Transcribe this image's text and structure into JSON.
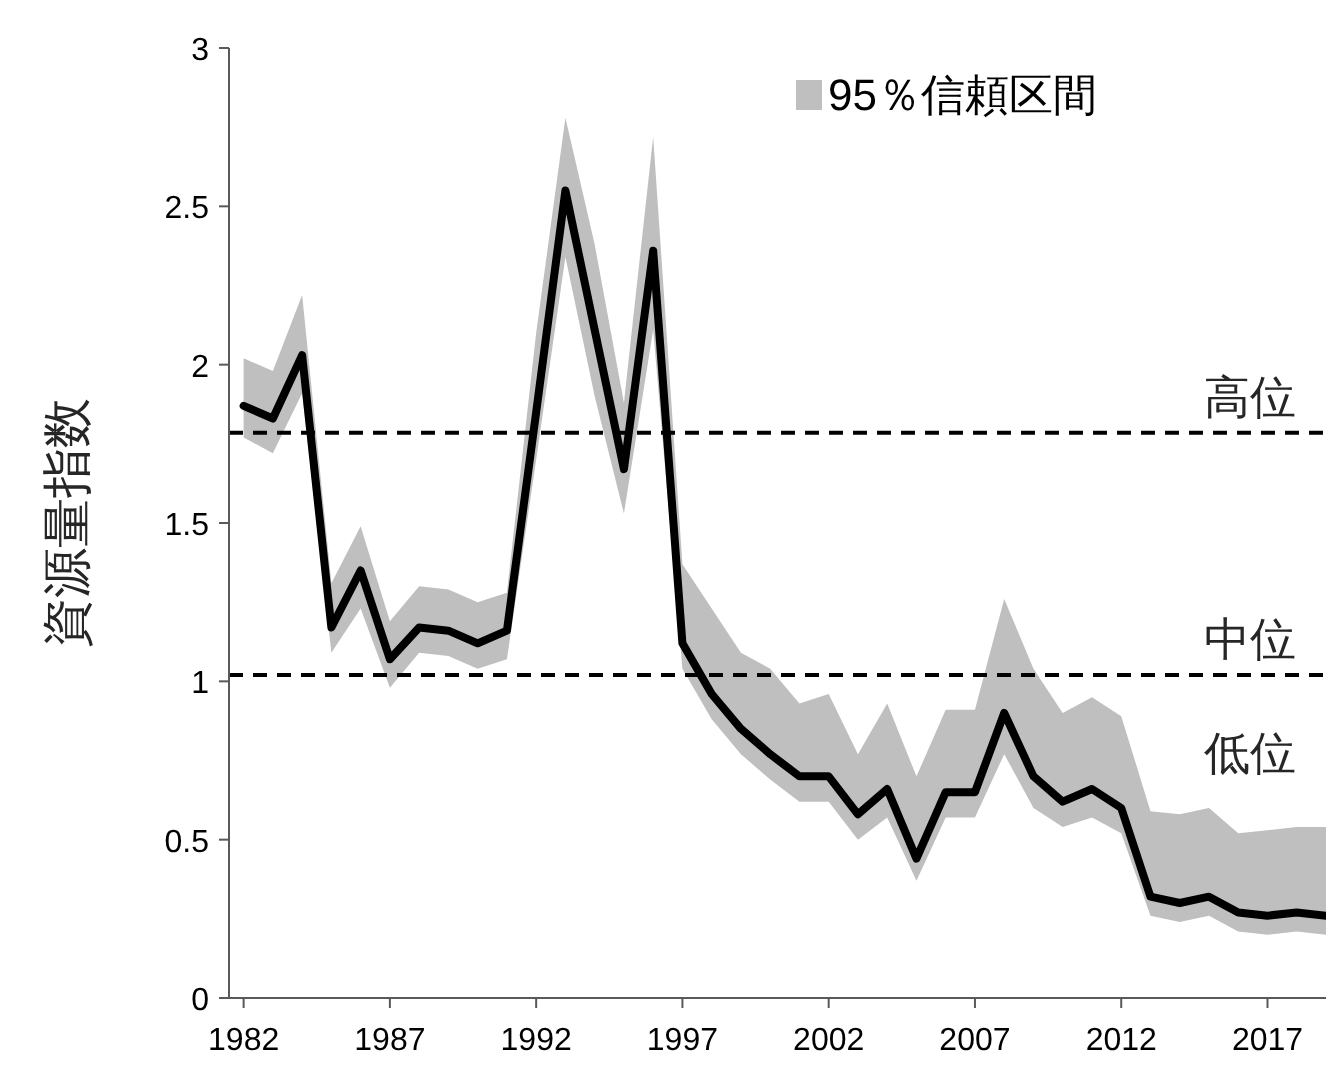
{
  "chart_data": {
    "type": "line",
    "ylabel": "資源量指数",
    "x": [
      1982,
      1983,
      1984,
      1985,
      1986,
      1987,
      1988,
      1989,
      1990,
      1991,
      1992,
      1993,
      1994,
      1995,
      1996,
      1997,
      1998,
      1999,
      2000,
      2001,
      2002,
      2003,
      2004,
      2005,
      2006,
      2007,
      2008,
      2009,
      2010,
      2011,
      2012,
      2013,
      2014,
      2015,
      2016,
      2017,
      2018,
      2019
    ],
    "series": [
      {
        "color": "#000000",
        "values": [
          1.87,
          1.83,
          2.03,
          1.17,
          1.35,
          1.07,
          1.17,
          1.16,
          1.12,
          1.16,
          1.85,
          2.55,
          2.11,
          1.67,
          2.36,
          1.12,
          0.96,
          0.85,
          0.77,
          0.7,
          0.7,
          0.58,
          0.66,
          0.44,
          0.65,
          0.65,
          0.9,
          0.7,
          0.62,
          0.66,
          0.6,
          0.32,
          0.3,
          0.32,
          0.27,
          0.26,
          0.27,
          0.26
        ],
        "upper": [
          2.02,
          1.98,
          2.22,
          1.31,
          1.49,
          1.19,
          1.3,
          1.29,
          1.25,
          1.28,
          2.1,
          2.78,
          2.38,
          1.88,
          2.72,
          1.37,
          1.23,
          1.09,
          1.04,
          0.93,
          0.96,
          0.77,
          0.93,
          0.7,
          0.91,
          0.91,
          1.26,
          1.04,
          0.9,
          0.95,
          0.89,
          0.59,
          0.58,
          0.6,
          0.52,
          0.53,
          0.54,
          0.54
        ],
        "lower": [
          1.77,
          1.72,
          1.91,
          1.09,
          1.23,
          0.98,
          1.09,
          1.08,
          1.04,
          1.07,
          1.7,
          2.34,
          1.9,
          1.53,
          2.11,
          1.04,
          0.88,
          0.77,
          0.69,
          0.62,
          0.62,
          0.5,
          0.57,
          0.37,
          0.57,
          0.57,
          0.77,
          0.6,
          0.54,
          0.57,
          0.52,
          0.26,
          0.24,
          0.26,
          0.21,
          0.2,
          0.21,
          0.2
        ]
      }
    ],
    "xlim": [
      1981.5,
      2019
    ],
    "xticks": [
      1982,
      1987,
      1992,
      1997,
      2002,
      2007,
      2012,
      2017
    ],
    "ylim": [
      0,
      3
    ],
    "yticks": [
      0,
      0.5,
      1,
      1.5,
      2,
      2.5,
      3
    ],
    "ref_lines": [
      {
        "axis": "y",
        "value": 1.785,
        "label": "高位",
        "color": "#000000",
        "line_style": "dashed"
      },
      {
        "axis": "y",
        "value": 1.02,
        "label": "中位",
        "color": "#000000",
        "line_style": "dashed"
      }
    ],
    "annotations": [
      "95％信頼区間",
      "低位"
    ],
    "line_style": "solid",
    "marker": "none",
    "grid": false
  }
}
